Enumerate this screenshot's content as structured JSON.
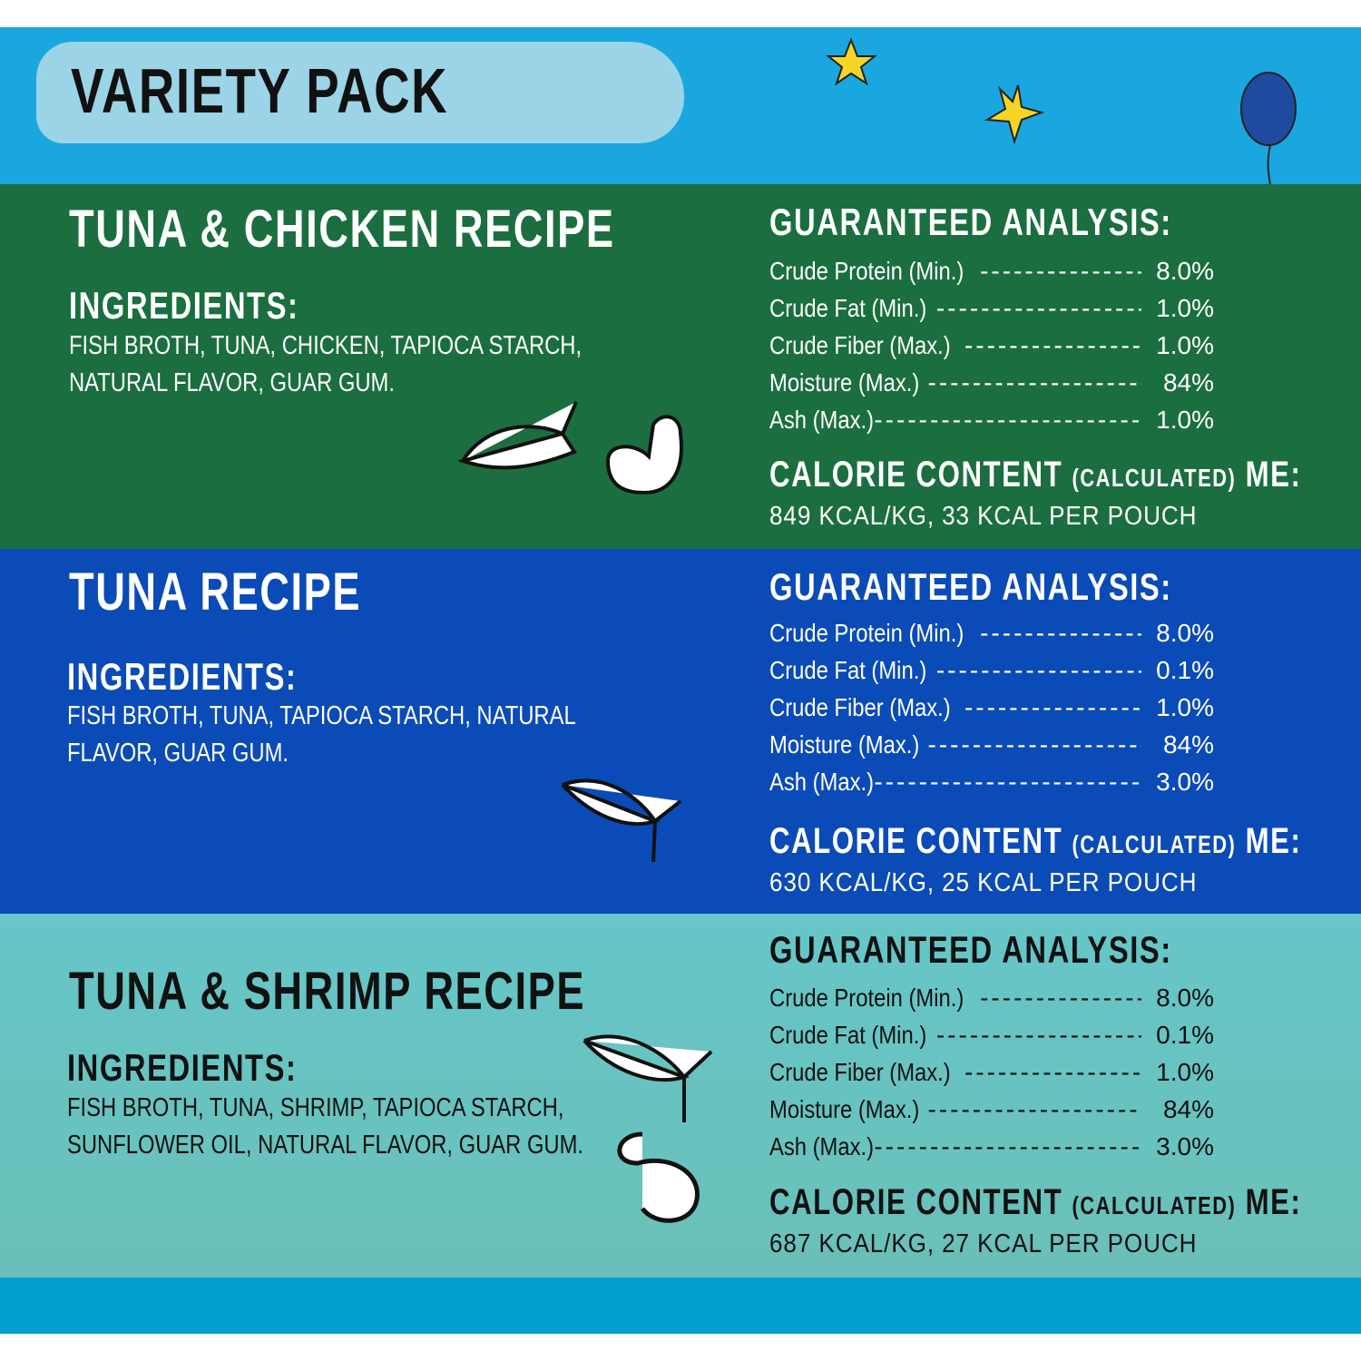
{
  "header": {
    "title": "VARIETY PACK"
  },
  "colors": {
    "top": "#1aa6de",
    "tuna_chicken": "#1b6e3f",
    "tuna": "#0b4bb8",
    "tuna_shrimp": "#66c6c8",
    "bottom": "#029fcf"
  },
  "labels": {
    "ingredients": "INGREDIENTS:",
    "analysis": "GUARANTEED ANALYSIS:",
    "calorie": "CALORIE CONTENT",
    "calculated": "(CALCULATED)",
    "me": "ME:"
  },
  "sections": [
    {
      "title": "TUNA & CHICKEN RECIPE",
      "ingredients": [
        "FISH BROTH, TUNA, CHICKEN, TAPIOCA STARCH,",
        "NATURAL FLAVOR, GUAR GUM."
      ],
      "analysis": [
        {
          "label": "Crude Protein (Min.)",
          "value": "8.0%"
        },
        {
          "label": "Crude Fat (Min.)",
          "value": "1.0%"
        },
        {
          "label": "Crude Fiber (Max.)",
          "value": "1.0%"
        },
        {
          "label": "Moisture (Max.)",
          "value": "84%"
        },
        {
          "label": "Ash (Max.)",
          "value": "1.0%"
        }
      ],
      "calories": "849 KCAL/KG, 33 KCAL PER POUCH",
      "icons": [
        "fish-icon",
        "chicken-icon"
      ]
    },
    {
      "title": "TUNA RECIPE",
      "ingredients": [
        "FISH BROTH, TUNA, TAPIOCA STARCH, NATURAL",
        "FLAVOR, GUAR GUM."
      ],
      "analysis": [
        {
          "label": "Crude Protein (Min.)",
          "value": "8.0%"
        },
        {
          "label": "Crude Fat (Min.)",
          "value": "0.1%"
        },
        {
          "label": "Crude Fiber (Max.)",
          "value": "1.0%"
        },
        {
          "label": "Moisture (Max.)",
          "value": "84%"
        },
        {
          "label": "Ash (Max.)",
          "value": "3.0%"
        }
      ],
      "calories": "630 KCAL/KG, 25 KCAL PER POUCH",
      "icons": [
        "fish-icon"
      ]
    },
    {
      "title": "TUNA & SHRIMP RECIPE",
      "ingredients": [
        "FISH BROTH, TUNA, SHRIMP, TAPIOCA STARCH,",
        "SUNFLOWER OIL, NATURAL FLAVOR, GUAR GUM."
      ],
      "analysis": [
        {
          "label": "Crude Protein (Min.)",
          "value": "8.0%"
        },
        {
          "label": "Crude Fat (Min.)",
          "value": "0.1%"
        },
        {
          "label": "Crude Fiber (Max.)",
          "value": "1.0%"
        },
        {
          "label": "Moisture (Max.)",
          "value": "84%"
        },
        {
          "label": "Ash (Max.)",
          "value": "3.0%"
        }
      ],
      "calories": "687 KCAL/KG, 27 KCAL PER POUCH",
      "icons": [
        "fish-icon",
        "shrimp-icon"
      ]
    }
  ]
}
